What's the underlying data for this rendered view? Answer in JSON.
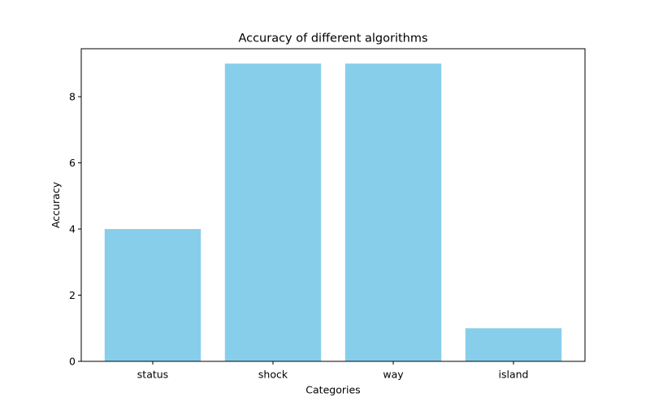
{
  "chart_data": {
    "type": "bar",
    "title": "Accuracy of different algorithms",
    "xlabel": "Categories",
    "ylabel": "Accuracy",
    "categories": [
      "status",
      "shock",
      "way",
      "island"
    ],
    "values": [
      4,
      9,
      9,
      1
    ],
    "yticks": [
      0,
      2,
      4,
      6,
      8
    ],
    "ylim": [
      0,
      9.45
    ],
    "bar_color": "#87CEEB",
    "grid": false,
    "legend": "none"
  }
}
